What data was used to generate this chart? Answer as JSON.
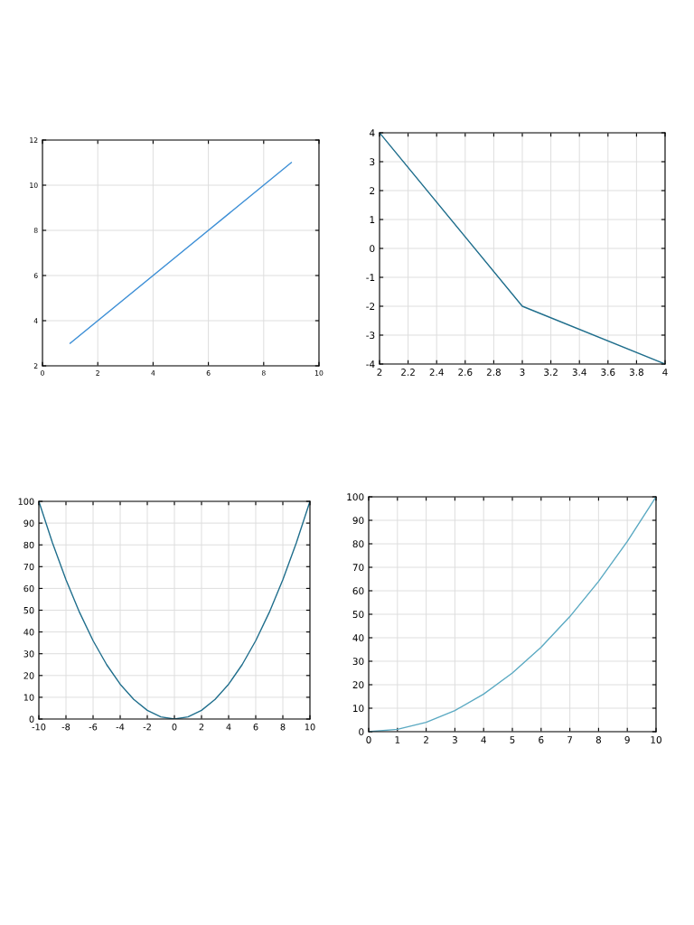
{
  "chart_data": [
    {
      "type": "line",
      "x": [
        1,
        9
      ],
      "series": [
        {
          "color": "#3d8fd6",
          "values": [
            3,
            11
          ]
        }
      ],
      "xlim": [
        0,
        10
      ],
      "ylim": [
        2,
        12
      ],
      "xticks": [
        0,
        2,
        4,
        6,
        8,
        10
      ],
      "yticks": [
        2,
        4,
        6,
        8,
        10,
        12
      ],
      "grid": true
    },
    {
      "type": "line",
      "x": [
        2,
        3,
        4
      ],
      "series": [
        {
          "color": "#1f6e8c",
          "values": [
            4,
            -2,
            -4
          ]
        }
      ],
      "xlim": [
        2,
        4
      ],
      "ylim": [
        -4,
        4
      ],
      "xticks": [
        2,
        2.2,
        2.4,
        2.6,
        2.8,
        3,
        3.2,
        3.4,
        3.6,
        3.8,
        4
      ],
      "yticks": [
        -4,
        -3,
        -2,
        -1,
        0,
        1,
        2,
        3,
        4
      ],
      "grid": true
    },
    {
      "type": "line",
      "x": [
        -10,
        -9,
        -8,
        -7,
        -6,
        -5,
        -4,
        -3,
        -2,
        -1,
        0,
        1,
        2,
        3,
        4,
        5,
        6,
        7,
        8,
        9,
        10
      ],
      "series": [
        {
          "color": "#1f6e8c",
          "values": [
            100,
            81,
            64,
            49,
            36,
            25,
            16,
            9,
            4,
            1,
            0,
            1,
            4,
            9,
            16,
            25,
            36,
            49,
            64,
            81,
            100
          ]
        }
      ],
      "xlim": [
        -10,
        10
      ],
      "ylim": [
        0,
        100
      ],
      "xticks": [
        -10,
        -8,
        -6,
        -4,
        -2,
        0,
        2,
        4,
        6,
        8,
        10
      ],
      "yticks": [
        0,
        10,
        20,
        30,
        40,
        50,
        60,
        70,
        80,
        90,
        100
      ],
      "grid": true
    },
    {
      "type": "line",
      "x": [
        0,
        1,
        2,
        3,
        4,
        5,
        6,
        7,
        8,
        9,
        10
      ],
      "series": [
        {
          "color": "#5aa9c2",
          "values": [
            0,
            1,
            4,
            9,
            16,
            25,
            36,
            49,
            64,
            81,
            100
          ]
        }
      ],
      "xlim": [
        0,
        10
      ],
      "ylim": [
        0,
        100
      ],
      "xticks": [
        0,
        1,
        2,
        3,
        4,
        5,
        6,
        7,
        8,
        9,
        10
      ],
      "yticks": [
        0,
        10,
        20,
        30,
        40,
        50,
        60,
        70,
        80,
        90,
        100
      ],
      "grid": true
    }
  ]
}
